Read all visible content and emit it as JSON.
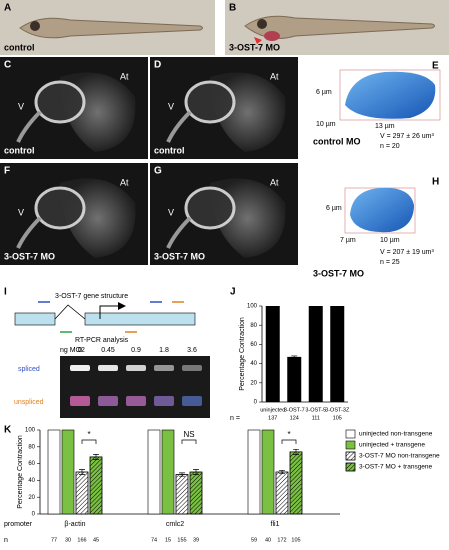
{
  "panels": {
    "A": {
      "label": "A",
      "caption": "control"
    },
    "B": {
      "label": "B",
      "caption": "3-OST-7 MO"
    },
    "C": {
      "label": "C",
      "caption": "control",
      "ventricle": "V",
      "atrium": "At"
    },
    "D": {
      "label": "D",
      "caption": "control",
      "ventricle": "V",
      "atrium": "At"
    },
    "E": {
      "label": "E",
      "dims": [
        "6 µm",
        "10 µm",
        "13 µm"
      ],
      "caption": "control MO",
      "volume": "V = 297 ± 26 um³",
      "n": "n = 20"
    },
    "F": {
      "label": "F",
      "caption": "3-OST-7 MO",
      "ventricle": "V",
      "atrium": "At"
    },
    "G": {
      "label": "G",
      "caption": "3-OST-7 MO",
      "ventricle": "V",
      "atrium": "At"
    },
    "H": {
      "label": "H",
      "dims": [
        "6 µm",
        "7 µm",
        "10 µm"
      ],
      "caption": "3-OST-7 MO",
      "volume": "V = 207 ± 19 um³",
      "n": "n = 25"
    },
    "I": {
      "label": "I",
      "title": "3-OST-7 gene structure",
      "subtitle": "RT-PCR analysis",
      "dose_label": "ng MO2",
      "doses": [
        0,
        0.45,
        0.9,
        1.8,
        3.6
      ],
      "bands": [
        "spliced",
        "unspliced"
      ]
    }
  },
  "chart_data": [
    {
      "type": "bar",
      "label": "J",
      "ylabel": "Percentage Contraction",
      "categories": [
        "uninjected",
        "3-OST-7",
        "3-OST-5",
        "3-OST-3Z"
      ],
      "values": [
        100,
        47,
        100,
        100
      ],
      "errors": [
        null,
        1,
        null,
        null
      ],
      "color": "#000000",
      "n_label": "n =",
      "n": [
        137,
        124,
        111,
        105
      ],
      "ylim": [
        0,
        100
      ],
      "yticks": [
        0,
        20,
        40,
        60,
        80,
        100
      ]
    },
    {
      "type": "grouped_bar",
      "label": "K",
      "ylabel": "Percentage Contraction",
      "category_label": "promoter",
      "categories": [
        "β-actin",
        "cmlc2",
        "fli1"
      ],
      "n_label": "n",
      "series": [
        {
          "name": "uninjected non-transgene",
          "color": "#ffffff",
          "hatch": false,
          "values": [
            100,
            100,
            100
          ],
          "n": [
            77,
            74,
            59
          ]
        },
        {
          "name": "uninjected + transgene",
          "color": "#7ac143",
          "hatch": false,
          "values": [
            100,
            100,
            100
          ],
          "n": [
            30,
            15,
            40
          ]
        },
        {
          "name": "3-OST-7 MO non-transgene",
          "color": "#ffffff",
          "hatch": true,
          "values": [
            50,
            47,
            50
          ],
          "errors": [
            3,
            2,
            2
          ],
          "n": [
            166,
            155,
            172
          ]
        },
        {
          "name": "3-OST-7 MO + transgene",
          "color": "#7ac143",
          "hatch": true,
          "values": [
            68,
            50,
            74
          ],
          "errors": [
            3,
            3,
            3
          ],
          "n": [
            45,
            39,
            105
          ]
        }
      ],
      "annotations": [
        "*",
        "NS",
        "*"
      ],
      "ylim": [
        0,
        100
      ],
      "yticks": [
        0,
        20,
        40,
        60,
        80,
        100
      ]
    }
  ]
}
